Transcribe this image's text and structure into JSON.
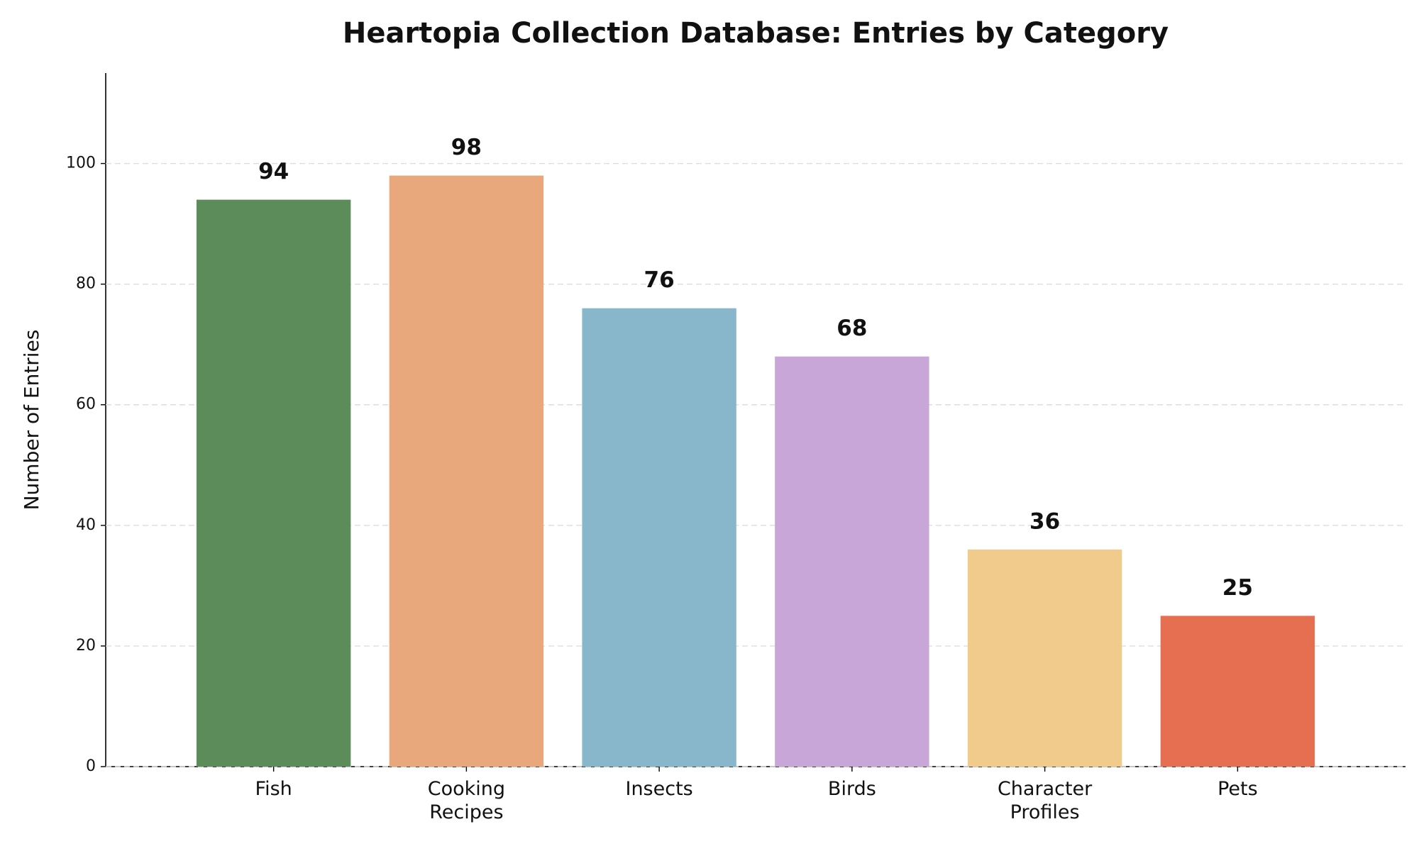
{
  "chart_data": {
    "type": "bar",
    "title": "Heartopia Collection Database: Entries by Category",
    "y_label": "Number of Entries",
    "categories": [
      "Fish",
      "Cooking Recipes",
      "Insects",
      "Birds",
      "Character Profiles",
      "Pets"
    ],
    "values": [
      94,
      98,
      76,
      68,
      36,
      25
    ],
    "colors": [
      "#5b8c5a",
      "#e8a87c",
      "#88b7cb",
      "#c9a6d8",
      "#f1cb8c",
      "#e76f51"
    ],
    "ylim": [
      0,
      115
    ],
    "yticks": [
      0,
      20,
      40,
      60,
      80,
      100
    ],
    "grid": true
  }
}
